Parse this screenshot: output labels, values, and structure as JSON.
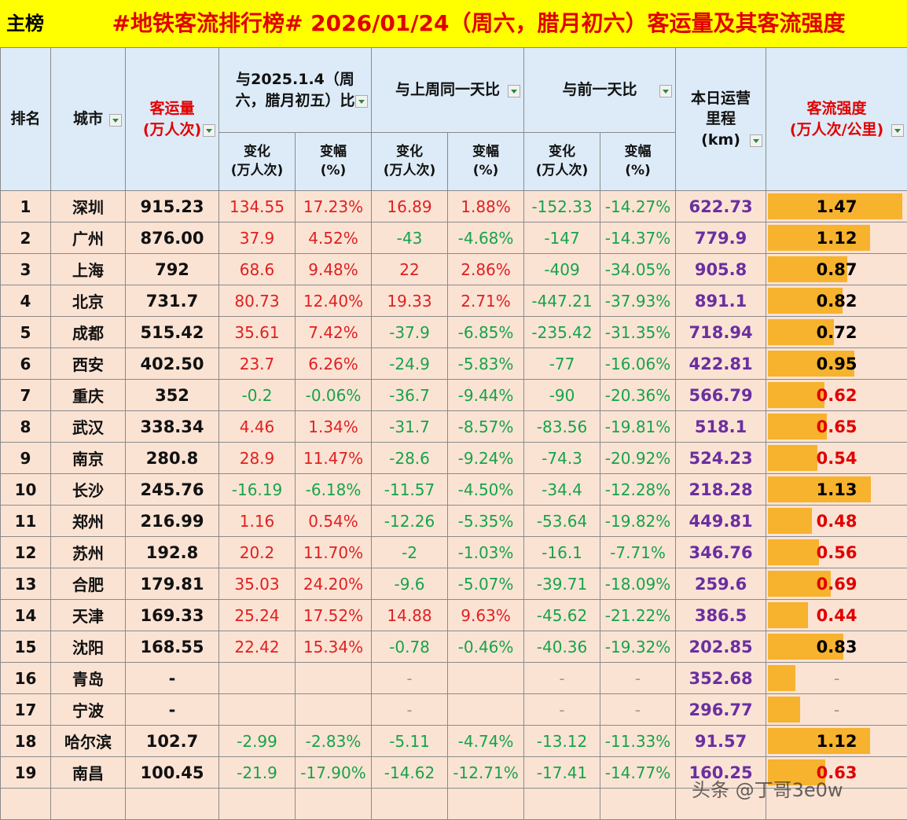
{
  "title": {
    "tag": "主榜",
    "text": "#地铁客流排行榜# 2026/01/24（周六，腊月初六）客运量及其客流强度"
  },
  "headers": {
    "rank": "排名",
    "city": "城市",
    "volume": [
      "客运量",
      "(万人次)"
    ],
    "cmp_2025": [
      "与2025.1.4（周",
      "六，腊月初五）比"
    ],
    "cmp_lastweek": "与上周同一天比",
    "cmp_prevday": "与前一天比",
    "mileage": [
      "本日运营",
      "里程",
      "(km)"
    ],
    "intensity": [
      "客流强度",
      "(万人次/公里)"
    ],
    "change": [
      "变化",
      "(万人次)"
    ],
    "pct": [
      "变幅",
      "(%)"
    ]
  },
  "rows": [
    {
      "rank": "1",
      "city": "深圳",
      "volume": "915.23",
      "c1": "134.55",
      "p1": "17.23%",
      "c2": "16.89",
      "p2": "1.88%",
      "c3": "-152.33",
      "p3": "-14.27%",
      "mileage": "622.73",
      "intensity": "1.47",
      "level": 1.47
    },
    {
      "rank": "2",
      "city": "广州",
      "volume": "876.00",
      "c1": "37.9",
      "p1": "4.52%",
      "c2": "-43",
      "p2": "-4.68%",
      "c3": "-147",
      "p3": "-14.37%",
      "mileage": "779.9",
      "intensity": "1.12",
      "level": 1.12
    },
    {
      "rank": "3",
      "city": "上海",
      "volume": "792",
      "c1": "68.6",
      "p1": "9.48%",
      "c2": "22",
      "p2": "2.86%",
      "c3": "-409",
      "p3": "-34.05%",
      "mileage": "905.8",
      "intensity": "0.87",
      "level": 0.87
    },
    {
      "rank": "4",
      "city": "北京",
      "volume": "731.7",
      "c1": "80.73",
      "p1": "12.40%",
      "c2": "19.33",
      "p2": "2.71%",
      "c3": "-447.21",
      "p3": "-37.93%",
      "mileage": "891.1",
      "intensity": "0.82",
      "level": 0.82
    },
    {
      "rank": "5",
      "city": "成都",
      "volume": "515.42",
      "c1": "35.61",
      "p1": "7.42%",
      "c2": "-37.9",
      "p2": "-6.85%",
      "c3": "-235.42",
      "p3": "-31.35%",
      "mileage": "718.94",
      "intensity": "0.72",
      "level": 0.72
    },
    {
      "rank": "6",
      "city": "西安",
      "volume": "402.50",
      "c1": "23.7",
      "p1": "6.26%",
      "c2": "-24.9",
      "p2": "-5.83%",
      "c3": "-77",
      "p3": "-16.06%",
      "mileage": "422.81",
      "intensity": "0.95",
      "level": 0.95
    },
    {
      "rank": "7",
      "city": "重庆",
      "volume": "352",
      "c1": "-0.2",
      "p1": "-0.06%",
      "c2": "-36.7",
      "p2": "-9.44%",
      "c3": "-90",
      "p3": "-20.36%",
      "mileage": "566.79",
      "intensity": "0.62",
      "level": 0.62
    },
    {
      "rank": "8",
      "city": "武汉",
      "volume": "338.34",
      "c1": "4.46",
      "p1": "1.34%",
      "c2": "-31.7",
      "p2": "-8.57%",
      "c3": "-83.56",
      "p3": "-19.81%",
      "mileage": "518.1",
      "intensity": "0.65",
      "level": 0.65
    },
    {
      "rank": "9",
      "city": "南京",
      "volume": "280.8",
      "c1": "28.9",
      "p1": "11.47%",
      "c2": "-28.6",
      "p2": "-9.24%",
      "c3": "-74.3",
      "p3": "-20.92%",
      "mileage": "524.23",
      "intensity": "0.54",
      "level": 0.54
    },
    {
      "rank": "10",
      "city": "长沙",
      "volume": "245.76",
      "c1": "-16.19",
      "p1": "-6.18%",
      "c2": "-11.57",
      "p2": "-4.50%",
      "c3": "-34.4",
      "p3": "-12.28%",
      "mileage": "218.28",
      "intensity": "1.13",
      "level": 1.13
    },
    {
      "rank": "11",
      "city": "郑州",
      "volume": "216.99",
      "c1": "1.16",
      "p1": "0.54%",
      "c2": "-12.26",
      "p2": "-5.35%",
      "c3": "-53.64",
      "p3": "-19.82%",
      "mileage": "449.81",
      "intensity": "0.48",
      "level": 0.48
    },
    {
      "rank": "12",
      "city": "苏州",
      "volume": "192.8",
      "c1": "20.2",
      "p1": "11.70%",
      "c2": "-2",
      "p2": "-1.03%",
      "c3": "-16.1",
      "p3": "-7.71%",
      "mileage": "346.76",
      "intensity": "0.56",
      "level": 0.56
    },
    {
      "rank": "13",
      "city": "合肥",
      "volume": "179.81",
      "c1": "35.03",
      "p1": "24.20%",
      "c2": "-9.6",
      "p2": "-5.07%",
      "c3": "-39.71",
      "p3": "-18.09%",
      "mileage": "259.6",
      "intensity": "0.69",
      "level": 0.69
    },
    {
      "rank": "14",
      "city": "天津",
      "volume": "169.33",
      "c1": "25.24",
      "p1": "17.52%",
      "c2": "14.88",
      "p2": "9.63%",
      "c3": "-45.62",
      "p3": "-21.22%",
      "mileage": "386.5",
      "intensity": "0.44",
      "level": 0.44
    },
    {
      "rank": "15",
      "city": "沈阳",
      "volume": "168.55",
      "c1": "22.42",
      "p1": "15.34%",
      "c2": "-0.78",
      "p2": "-0.46%",
      "c3": "-40.36",
      "p3": "-19.32%",
      "mileage": "202.85",
      "intensity": "0.83",
      "level": 0.83
    },
    {
      "rank": "16",
      "city": "青岛",
      "volume": "-",
      "c1": "",
      "p1": "",
      "c2": "-",
      "p2": "",
      "c3": "-",
      "p3": "-",
      "mileage": "352.68",
      "intensity": "-",
      "level": 0.3
    },
    {
      "rank": "17",
      "city": "宁波",
      "volume": "-",
      "c1": "",
      "p1": "",
      "c2": "-",
      "p2": "",
      "c3": "-",
      "p3": "-",
      "mileage": "296.77",
      "intensity": "-",
      "level": 0.35
    },
    {
      "rank": "18",
      "city": "哈尔滨",
      "volume": "102.7",
      "c1": "-2.99",
      "p1": "-2.83%",
      "c2": "-5.11",
      "p2": "-4.74%",
      "c3": "-13.12",
      "p3": "-11.33%",
      "mileage": "91.57",
      "intensity": "1.12",
      "level": 1.12
    },
    {
      "rank": "19",
      "city": "南昌",
      "volume": "100.45",
      "c1": "-21.9",
      "p1": "-17.90%",
      "c2": "-14.62",
      "p2": "-12.71%",
      "c3": "-17.41",
      "p3": "-14.77%",
      "mileage": "160.25",
      "intensity": "0.63",
      "level": 0.63
    }
  ],
  "watermark": "头条 @丁哥3e0w"
}
